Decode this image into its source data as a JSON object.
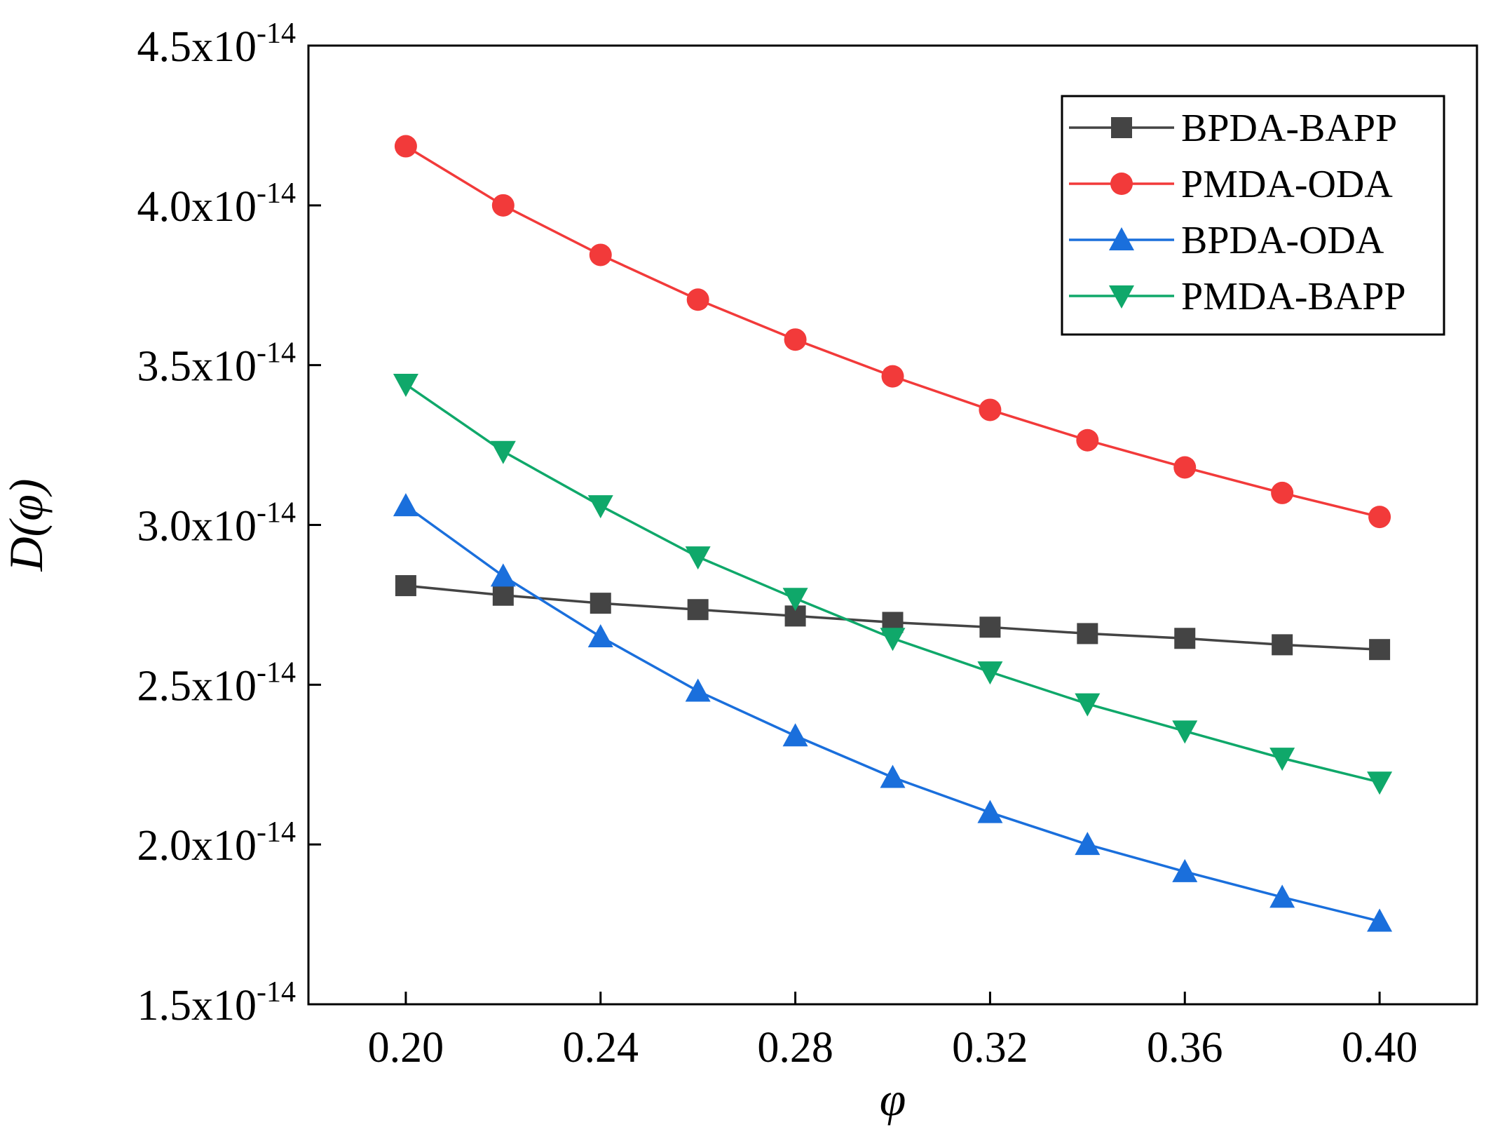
{
  "chart_data": {
    "type": "line",
    "title": "",
    "xlabel": "φ",
    "ylabel": "D(φ)",
    "xlim": [
      0.18,
      0.42
    ],
    "ylim": [
      1.5e-14,
      4.5e-14
    ],
    "x_ticks": [
      0.2,
      0.24,
      0.28,
      0.32,
      0.36,
      0.4
    ],
    "x_tick_labels": [
      "0.20",
      "0.24",
      "0.28",
      "0.32",
      "0.36",
      "0.40"
    ],
    "y_ticks": [
      1.5e-14,
      2e-14,
      2.5e-14,
      3e-14,
      3.5e-14,
      4e-14,
      4.5e-14
    ],
    "y_tick_labels": [
      {
        "mantissa": "1.5x10",
        "exponent": "-14"
      },
      {
        "mantissa": "2.0x10",
        "exponent": "-14"
      },
      {
        "mantissa": "2.5x10",
        "exponent": "-14"
      },
      {
        "mantissa": "3.0x10",
        "exponent": "-14"
      },
      {
        "mantissa": "3.5x10",
        "exponent": "-14"
      },
      {
        "mantissa": "4.0x10",
        "exponent": "-14"
      },
      {
        "mantissa": "4.5x10",
        "exponent": "-14"
      }
    ],
    "grid": false,
    "legend_position": "top-right",
    "x": [
      0.2,
      0.22,
      0.24,
      0.26,
      0.28,
      0.3,
      0.32,
      0.34,
      0.36,
      0.38,
      0.4
    ],
    "series": [
      {
        "name": "BPDA-BAPP",
        "color": "#444444",
        "marker": "square",
        "values": [
          2.81e-14,
          2.78e-14,
          2.755e-14,
          2.735e-14,
          2.715e-14,
          2.695e-14,
          2.68e-14,
          2.66e-14,
          2.645e-14,
          2.625e-14,
          2.61e-14
        ]
      },
      {
        "name": "PMDA-ODA",
        "color": "#f23a3a",
        "marker": "circle",
        "values": [
          4.185e-14,
          4e-14,
          3.845e-14,
          3.705e-14,
          3.58e-14,
          3.465e-14,
          3.36e-14,
          3.265e-14,
          3.18e-14,
          3.1e-14,
          3.025e-14
        ]
      },
      {
        "name": "BPDA-ODA",
        "color": "#1a6fdc",
        "marker": "triangle-up",
        "values": [
          3.06e-14,
          2.84e-14,
          2.65e-14,
          2.48e-14,
          2.34e-14,
          2.21e-14,
          2.1e-14,
          2e-14,
          1.915e-14,
          1.835e-14,
          1.76e-14
        ]
      },
      {
        "name": "PMDA-BAPP",
        "color": "#0fa86a",
        "marker": "triangle-down",
        "values": [
          3.44e-14,
          3.23e-14,
          3.06e-14,
          2.9e-14,
          2.77e-14,
          2.645e-14,
          2.54e-14,
          2.44e-14,
          2.355e-14,
          2.27e-14,
          2.195e-14
        ]
      }
    ]
  }
}
